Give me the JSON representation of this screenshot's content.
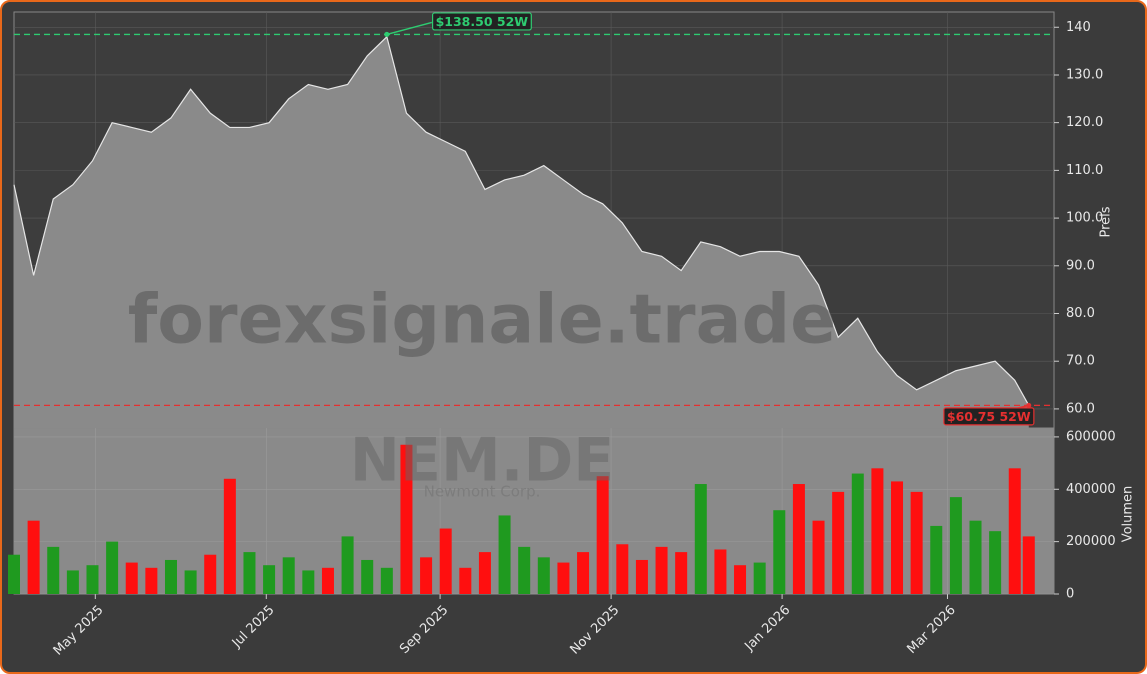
{
  "chart_data": {
    "type": "area",
    "title": "NEM.DE",
    "subtitle": "Newmont Corp.",
    "watermark": "forexsignale.trade",
    "ylabel": "Preis",
    "color": "#8a8a8a",
    "line_color": "#e6e6e6",
    "up_color": "#1f9a1f",
    "down_color": "#ff0f0f",
    "grid": true,
    "x": [
      "2025-04-02",
      "2025-04-09",
      "2025-04-16",
      "2025-04-23",
      "2025-04-30",
      "2025-05-07",
      "2025-05-14",
      "2025-05-21",
      "2025-05-28",
      "2025-06-04",
      "2025-06-11",
      "2025-06-18",
      "2025-06-25",
      "2025-07-02",
      "2025-07-09",
      "2025-07-16",
      "2025-07-23",
      "2025-07-30",
      "2025-08-06",
      "2025-08-13",
      "2025-08-20",
      "2025-08-27",
      "2025-09-03",
      "2025-09-10",
      "2025-09-17",
      "2025-09-24",
      "2025-10-01",
      "2025-10-08",
      "2025-10-15",
      "2025-10-22",
      "2025-10-29",
      "2025-11-05",
      "2025-11-12",
      "2025-11-19",
      "2025-11-26",
      "2025-12-03",
      "2025-12-10",
      "2025-12-17",
      "2025-12-24",
      "2025-12-31",
      "2026-01-07",
      "2026-01-14",
      "2026-01-21",
      "2026-01-28",
      "2026-02-04",
      "2026-02-11",
      "2026-02-18",
      "2026-02-25",
      "2026-03-04",
      "2026-03-11",
      "2026-03-18",
      "2026-03-25",
      "2026-03-30"
    ],
    "values": [
      107,
      88,
      104,
      107,
      112,
      120,
      119,
      118,
      121,
      127,
      122,
      119,
      119,
      120,
      125,
      128,
      127,
      128,
      134,
      138,
      122,
      118,
      116,
      114,
      106,
      108,
      109,
      111,
      108,
      105,
      103,
      99,
      93,
      92,
      89,
      95,
      94,
      92,
      93,
      93,
      92,
      86,
      75,
      79,
      72,
      67,
      64,
      66,
      68,
      69,
      70,
      66,
      60.75
    ],
    "xlim": [
      "2025-04-02",
      "2026-04-08"
    ],
    "xticks": [
      {
        "value": "2025-05-01",
        "label": "May 2025"
      },
      {
        "value": "2025-07-01",
        "label": "Jul 2025"
      },
      {
        "value": "2025-09-01",
        "label": "Sep 2025"
      },
      {
        "value": "2025-11-01",
        "label": "Nov 2025"
      },
      {
        "value": "2026-01-01",
        "label": "Jan 2026"
      },
      {
        "value": "2026-03-01",
        "label": "Mar 2026"
      }
    ],
    "ylim": [
      56,
      143.2
    ],
    "yticks": [
      {
        "value": 60,
        "label": "60.0"
      },
      {
        "value": 70,
        "label": "70.0"
      },
      {
        "value": 80,
        "label": "80.0"
      },
      {
        "value": 90,
        "label": "90.0"
      },
      {
        "value": 100,
        "label": "100.0"
      },
      {
        "value": 110,
        "label": "110.0"
      },
      {
        "value": 120,
        "label": "120.0"
      },
      {
        "value": 130,
        "label": "130.0"
      },
      140
    ],
    "annotations": [
      {
        "value": 138.5,
        "label": "$138.50 52W",
        "color": "#2ecc71",
        "x": "2025-08-13"
      },
      {
        "value": 60.75,
        "label": "$60.75 52W",
        "color": "#e53030",
        "x": "2026-03-30"
      }
    ],
    "volume": {
      "ylabel": "Volumen",
      "values": [
        150000,
        280000,
        180000,
        90000,
        110000,
        200000,
        120000,
        100000,
        130000,
        90000,
        150000,
        440000,
        160000,
        110000,
        140000,
        90000,
        100000,
        220000,
        130000,
        100000,
        570000,
        140000,
        250000,
        100000,
        160000,
        300000,
        180000,
        140000,
        120000,
        160000,
        450000,
        190000,
        130000,
        180000,
        160000,
        420000,
        170000,
        110000,
        120000,
        320000,
        420000,
        280000,
        390000,
        460000,
        480000,
        430000,
        390000,
        260000,
        370000,
        280000,
        240000,
        480000,
        220000
      ],
      "ylim": [
        0,
        634000
      ],
      "yticks": [
        0,
        200000,
        400000,
        600000
      ]
    }
  }
}
